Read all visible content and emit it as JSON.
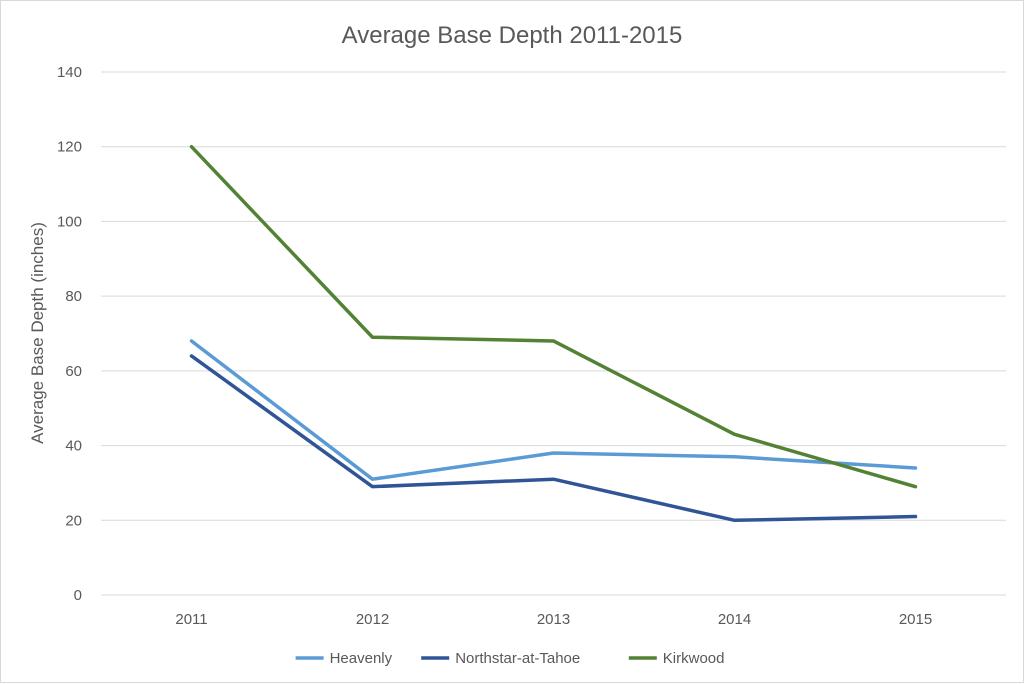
{
  "chart_data": {
    "type": "line",
    "title": "Average Base Depth 2011-2015",
    "xlabel": "",
    "ylabel": "Average Base Depth  (inches)",
    "categories": [
      "2011",
      "2012",
      "2013",
      "2014",
      "2015"
    ],
    "ylim": [
      0,
      140
    ],
    "yticks": [
      0,
      20,
      40,
      60,
      80,
      100,
      120,
      140
    ],
    "grid": true,
    "legend_position": "bottom",
    "series": [
      {
        "name": "Heavenly",
        "color": "#5b9bd5",
        "values": [
          68,
          31,
          38,
          37,
          34
        ]
      },
      {
        "name": "Northstar-at-Tahoe",
        "color": "#2f5597",
        "values": [
          64,
          29,
          31,
          20,
          21
        ]
      },
      {
        "name": "Kirkwood",
        "color": "#548235",
        "values": [
          120,
          69,
          68,
          43,
          29
        ]
      }
    ]
  }
}
